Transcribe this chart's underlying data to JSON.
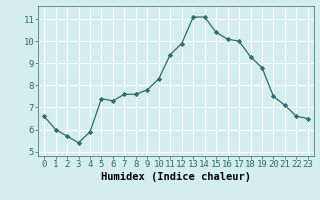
{
  "x": [
    0,
    1,
    2,
    3,
    4,
    5,
    6,
    7,
    8,
    9,
    10,
    11,
    12,
    13,
    14,
    15,
    16,
    17,
    18,
    19,
    20,
    21,
    22,
    23
  ],
  "y": [
    6.6,
    6.0,
    5.7,
    5.4,
    5.9,
    7.4,
    7.3,
    7.6,
    7.6,
    7.8,
    8.3,
    9.4,
    9.9,
    11.1,
    11.1,
    10.4,
    10.1,
    10.0,
    9.3,
    8.8,
    7.5,
    7.1,
    6.6,
    6.5
  ],
  "xlabel": "Humidex (Indice chaleur)",
  "ylim": [
    4.8,
    11.6
  ],
  "xlim": [
    -0.5,
    23.5
  ],
  "yticks": [
    5,
    6,
    7,
    8,
    9,
    10,
    11
  ],
  "xticks": [
    0,
    1,
    2,
    3,
    4,
    5,
    6,
    7,
    8,
    9,
    10,
    11,
    12,
    13,
    14,
    15,
    16,
    17,
    18,
    19,
    20,
    21,
    22,
    23
  ],
  "line_color": "#2e6b6b",
  "marker": "D",
  "marker_size": 2.2,
  "bg_color": "#d4eeee",
  "grid_color": "#ffffff",
  "label_fontsize": 7.5,
  "tick_fontsize": 6.5
}
